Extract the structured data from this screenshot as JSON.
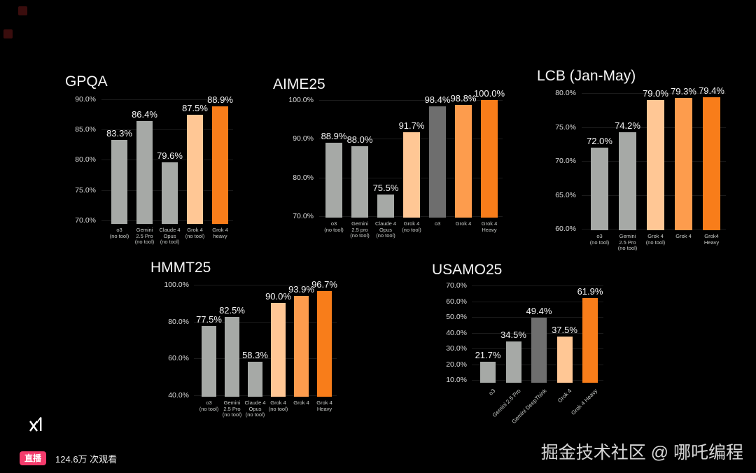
{
  "colors": {
    "gray": "#a6a9a6",
    "dark_gray": "#6e6e6e",
    "peach": "#ffc795",
    "orange": "#fd9c4d",
    "orange_strong": "#f87d1a"
  },
  "logo": {
    "name": "xAI"
  },
  "live": {
    "badge": "直播",
    "viewers": "124.6万 次观看",
    "badge_color": "#f43b6c"
  },
  "watermark": "掘金技术社区 @ 哪吒编程",
  "chart_data": [
    {
      "type": "bar",
      "title": "GPQA",
      "ylim": [
        69.4,
        90
      ],
      "grid": true,
      "legend": "none",
      "yticks": [
        {
          "label": "90.0%",
          "value": 90
        },
        {
          "label": "85.0%",
          "value": 85
        },
        {
          "label": "80.0%",
          "value": 80
        },
        {
          "label": "75.0%",
          "value": 75
        },
        {
          "label": "70.0%",
          "value": 70
        }
      ],
      "bars": [
        {
          "category": [
            "o3",
            "(no tool)"
          ],
          "value": 83.3,
          "label": "83.3%",
          "color": "gray"
        },
        {
          "category": [
            "Gemini",
            "2.5 Pro",
            "(no tool)"
          ],
          "value": 86.4,
          "label": "86.4%",
          "color": "gray"
        },
        {
          "category": [
            "Claude 4",
            "Opus",
            "(no tool)"
          ],
          "value": 79.6,
          "label": "79.6%",
          "color": "gray"
        },
        {
          "category": [
            "Grok 4",
            "(no tool)"
          ],
          "value": 87.5,
          "label": "87.5%",
          "color": "peach"
        },
        {
          "category": [
            "Grok 4",
            "heavy"
          ],
          "value": 88.9,
          "label": "88.9%",
          "color": "orange_strong"
        }
      ]
    },
    {
      "type": "bar",
      "title": "AIME25",
      "ylim": [
        69.6,
        100
      ],
      "grid": true,
      "legend": "none",
      "yticks": [
        {
          "label": "100.0%",
          "value": 100
        },
        {
          "label": "90.0%",
          "value": 90
        },
        {
          "label": "80.0%",
          "value": 80
        },
        {
          "label": "70.0%",
          "value": 70
        }
      ],
      "bars": [
        {
          "category": [
            "o3",
            "(no tool)"
          ],
          "value": 88.9,
          "label": "88.9%",
          "color": "gray"
        },
        {
          "category": [
            "Gemini",
            "2.5 pro",
            "(no tool)"
          ],
          "value": 88.0,
          "label": "88.0%",
          "color": "gray"
        },
        {
          "category": [
            "Claude 4",
            "Opus",
            "(no tool)"
          ],
          "value": 75.5,
          "label": "75.5%",
          "color": "gray"
        },
        {
          "category": [
            "Grok 4",
            "(no tool)"
          ],
          "value": 91.7,
          "label": "91.7%",
          "color": "peach"
        },
        {
          "category": [
            "o3"
          ],
          "value": 98.4,
          "label": "98.4%",
          "color": "dark_gray"
        },
        {
          "category": [
            "Grok 4"
          ],
          "value": 98.8,
          "label": "98.8%",
          "color": "orange"
        },
        {
          "category": [
            "Grok 4",
            "Heavy"
          ],
          "value": 100.0,
          "label": "100.0%",
          "color": "orange_strong"
        }
      ]
    },
    {
      "type": "bar",
      "title": "LCB (Jan-May)",
      "ylim": [
        59.8,
        80
      ],
      "grid": true,
      "legend": "none",
      "yticks": [
        {
          "label": "80.0%",
          "value": 80
        },
        {
          "label": "75.0%",
          "value": 75
        },
        {
          "label": "70.0%",
          "value": 70
        },
        {
          "label": "65.0%",
          "value": 65
        },
        {
          "label": "60.0%",
          "value": 60
        }
      ],
      "bars": [
        {
          "category": [
            "o3",
            "(no tool)"
          ],
          "value": 72.0,
          "label": "72.0%",
          "color": "gray"
        },
        {
          "category": [
            "Gemini",
            "2.5 Pro",
            "(no tool)"
          ],
          "value": 74.2,
          "label": "74.2%",
          "color": "gray"
        },
        {
          "category": [
            "Grok 4",
            "(no tool)"
          ],
          "value": 79.0,
          "label": "79.0%",
          "color": "peach"
        },
        {
          "category": [
            "Grok 4"
          ],
          "value": 79.3,
          "label": "79.3%",
          "color": "orange"
        },
        {
          "category": [
            "Grok4",
            "Heavy"
          ],
          "value": 79.4,
          "label": "79.4%",
          "color": "orange_strong"
        }
      ]
    },
    {
      "type": "bar",
      "title": "HMMT25",
      "ylim": [
        39.2,
        100
      ],
      "grid": true,
      "legend": "none",
      "yticks": [
        {
          "label": "100.0%",
          "value": 100
        },
        {
          "label": "80.0%",
          "value": 80
        },
        {
          "label": "60.0%",
          "value": 60
        },
        {
          "label": "40.0%",
          "value": 40
        }
      ],
      "bars": [
        {
          "category": [
            "o3",
            "(no tool)"
          ],
          "value": 77.5,
          "label": "77.5%",
          "color": "gray"
        },
        {
          "category": [
            "Gemini",
            "2.5 Pro",
            "(no tool)"
          ],
          "value": 82.5,
          "label": "82.5%",
          "color": "gray"
        },
        {
          "category": [
            "Claude 4",
            "Opus",
            "(no tool)"
          ],
          "value": 58.3,
          "label": "58.3%",
          "color": "gray"
        },
        {
          "category": [
            "Grok 4",
            "(no tool)"
          ],
          "value": 90.0,
          "label": "90.0%",
          "color": "peach"
        },
        {
          "category": [
            "Grok 4"
          ],
          "value": 93.9,
          "label": "93.9%",
          "color": "orange"
        },
        {
          "category": [
            "Grok 4",
            "Heavy"
          ],
          "value": 96.7,
          "label": "96.7%",
          "color": "orange_strong"
        }
      ]
    },
    {
      "type": "bar",
      "title": "USAMO25",
      "ylim": [
        8.3,
        70
      ],
      "grid": true,
      "legend": "none",
      "rotate_xlabels": true,
      "yticks": [
        {
          "label": "70.0%",
          "value": 70
        },
        {
          "label": "60.0%",
          "value": 60
        },
        {
          "label": "50.0%",
          "value": 50
        },
        {
          "label": "40.0%",
          "value": 40
        },
        {
          "label": "30.0%",
          "value": 30
        },
        {
          "label": "20.0%",
          "value": 20
        },
        {
          "label": "10.0%",
          "value": 10
        }
      ],
      "bars": [
        {
          "category": [
            "o3"
          ],
          "value": 21.7,
          "label": "21.7%",
          "color": "gray"
        },
        {
          "category": [
            "Gemini 2.5 Pro"
          ],
          "value": 34.5,
          "label": "34.5%",
          "color": "gray"
        },
        {
          "category": [
            "Gemini DeepThink"
          ],
          "value": 49.4,
          "label": "49.4%",
          "color": "dark_gray"
        },
        {
          "category": [
            "Grok 4"
          ],
          "value": 37.5,
          "label": "37.5%",
          "color": "peach"
        },
        {
          "category": [
            "Grok 4 Heavy"
          ],
          "value": 61.9,
          "label": "61.9%",
          "color": "orange_strong"
        }
      ]
    }
  ]
}
